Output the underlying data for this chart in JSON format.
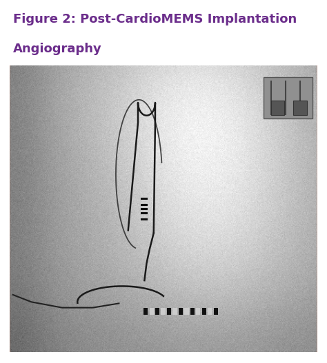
{
  "title_line1": "Figure 2: Post-CardioMEMS Implantation",
  "title_line2": "Angiography",
  "title_color": "#6B2D8B",
  "title_fontsize": 13,
  "bg_color": "#ffffff",
  "border_color": "#E08060",
  "fig_width": 4.74,
  "fig_height": 5.27
}
